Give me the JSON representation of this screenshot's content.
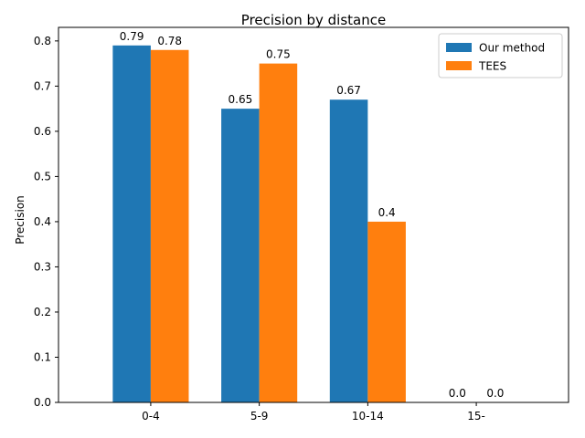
{
  "chart_data": {
    "type": "bar",
    "title": "Precision by distance",
    "xlabel": "",
    "ylabel": "Precision",
    "categories": [
      "0-4",
      "5-9",
      "10-14",
      "15-"
    ],
    "series": [
      {
        "name": "Our method",
        "values": [
          0.79,
          0.65,
          0.67,
          0.0
        ],
        "labels": [
          "0.79",
          "0.65",
          "0.67",
          "0.0"
        ],
        "color": "#1f77b4"
      },
      {
        "name": "TEES",
        "values": [
          0.78,
          0.75,
          0.4,
          0.0
        ],
        "labels": [
          "0.78",
          "0.75",
          "0.4",
          "0.0"
        ],
        "color": "#ff7f0e"
      }
    ],
    "ylim": [
      0,
      0.83
    ],
    "yticks": [
      "0.0",
      "0.1",
      "0.2",
      "0.3",
      "0.4",
      "0.5",
      "0.6",
      "0.7",
      "0.8"
    ],
    "grid": false,
    "legend_position": "top-right"
  }
}
